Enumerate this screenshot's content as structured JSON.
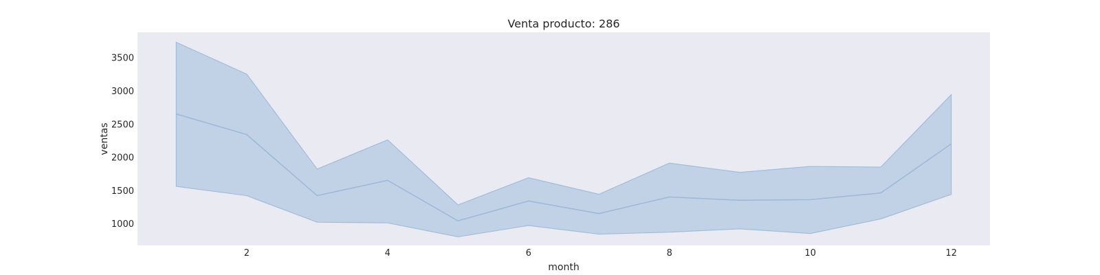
{
  "chart_data": {
    "type": "area",
    "title": "Venta producto: 286",
    "xlabel": "month",
    "ylabel": "ventas",
    "xlim": [
      0.45,
      12.55
    ],
    "ylim": [
      670,
      3880
    ],
    "x_ticks": [
      2,
      4,
      6,
      8,
      10,
      12
    ],
    "y_ticks": [
      1000,
      1500,
      2000,
      2500,
      3000,
      3500
    ],
    "grid": false,
    "legend": "none",
    "colors": {
      "plot_background": "#eaeaf2",
      "band_fill": "#a6c2dd",
      "band_edge": "#9fbdd9",
      "line": "#9bbad8"
    },
    "series": [
      {
        "x": [
          1,
          2,
          3,
          4,
          5,
          6,
          7,
          8,
          9,
          10,
          11,
          12
        ],
        "y": [
          2650,
          2340,
          1420,
          1650,
          1040,
          1340,
          1150,
          1400,
          1350,
          1360,
          1460,
          2200
        ],
        "y_lower": [
          1560,
          1420,
          1020,
          1010,
          800,
          970,
          840,
          870,
          920,
          850,
          1070,
          1440
        ],
        "y_upper": [
          3730,
          3250,
          1820,
          2260,
          1280,
          1690,
          1440,
          1910,
          1770,
          1860,
          1850,
          2940
        ]
      }
    ]
  }
}
